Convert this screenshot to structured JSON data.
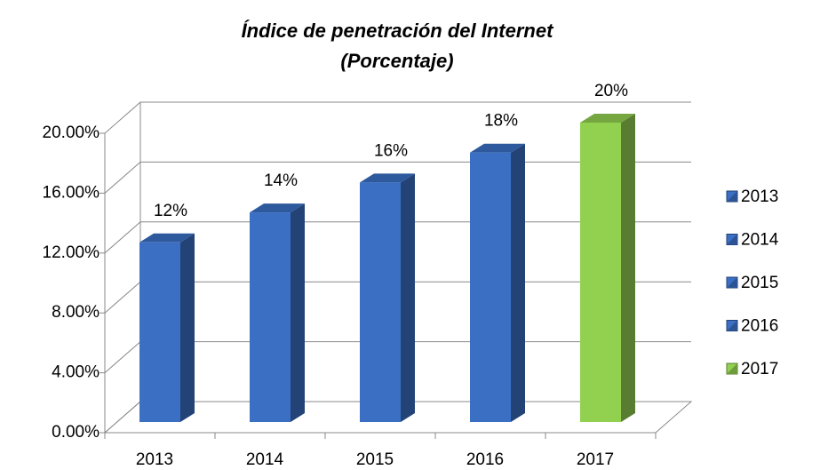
{
  "chart_data": {
    "type": "bar3d",
    "title": "Índice de penetración del Internet",
    "subtitle": "(Porcentaje)",
    "categories": [
      "2013",
      "2014",
      "2015",
      "2016",
      "2017"
    ],
    "values": [
      12,
      14,
      16,
      18,
      20
    ],
    "value_labels": [
      "12%",
      "14%",
      "16%",
      "18%",
      "20%"
    ],
    "colors": [
      "#3a6fc4",
      "#3a6fc4",
      "#3a6fc4",
      "#3a6fc4",
      "#92d050"
    ],
    "ylim": [
      0,
      20
    ],
    "yticks": [
      {
        "value": 0,
        "label": "0.00%"
      },
      {
        "value": 4,
        "label": "4.00%"
      },
      {
        "value": 8,
        "label": "8.00%"
      },
      {
        "value": 12,
        "label": "12.00%"
      },
      {
        "value": 16,
        "label": "16.00%"
      },
      {
        "value": 20,
        "label": "20.00%"
      }
    ],
    "grid": true,
    "legend": "right"
  }
}
